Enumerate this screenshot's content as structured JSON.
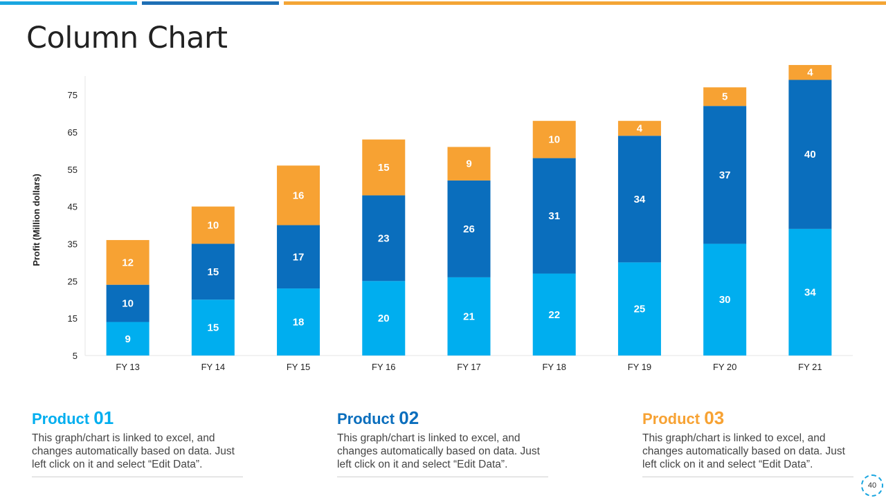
{
  "page": {
    "title": "Column Chart",
    "page_number": "40"
  },
  "colors": {
    "product01": "#00aeef",
    "product02": "#0a6ebd",
    "product03": "#f7a233",
    "top_bar_1": "#1aa6e0",
    "top_bar_2": "#1e6fb5",
    "top_bar_3": "#f4a535"
  },
  "chart_data": {
    "type": "bar",
    "stacked": true,
    "categories": [
      "FY 13",
      "FY 14",
      "FY 15",
      "FY 16",
      "FY 17",
      "FY 18",
      "FY 19",
      "FY 20",
      "FY 21"
    ],
    "series": [
      {
        "values": [
          9,
          15,
          18,
          20,
          21,
          22,
          25,
          30,
          34
        ]
      },
      {
        "values": [
          10,
          15,
          17,
          23,
          26,
          31,
          34,
          37,
          40
        ]
      },
      {
        "values": [
          12,
          10,
          16,
          15,
          9,
          10,
          4,
          5,
          4
        ]
      }
    ],
    "ylabel": "Profit  (Million dollars)",
    "xlabel": "",
    "ylim": [
      5,
      80
    ],
    "yticks": [
      5,
      15,
      25,
      35,
      45,
      55,
      65,
      75
    ],
    "data_labels": true,
    "grid": false
  },
  "products": [
    {
      "name": "Product",
      "number": "01",
      "description": "This graph/chart is linked to excel, and changes automatically based on data. Just left click on it and select “Edit Data”."
    },
    {
      "name": "Product",
      "number": "02",
      "description": "This graph/chart is linked to excel, and changes automatically based on data. Just left click on it and select “Edit Data”."
    },
    {
      "name": "Product",
      "number": "03",
      "description": "This graph/chart is linked to excel, and changes automatically based on data. Just left click on it and select “Edit Data”."
    }
  ]
}
